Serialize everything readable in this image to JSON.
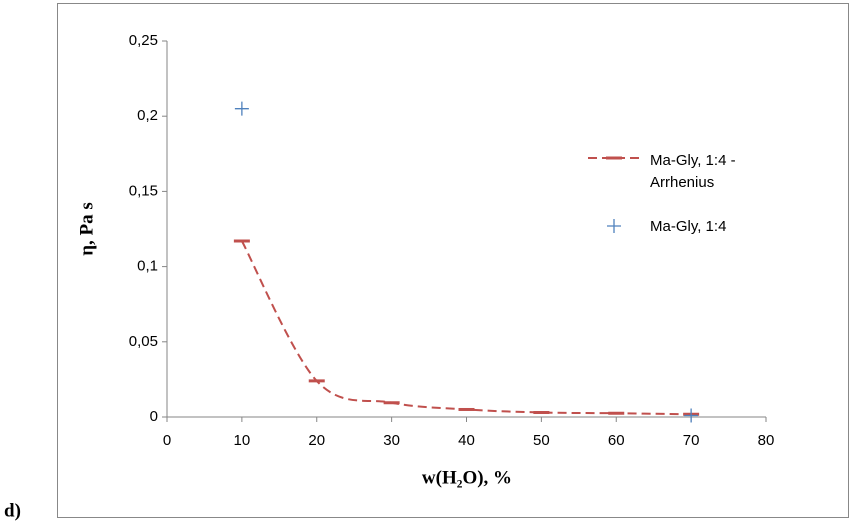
{
  "chart_data": {
    "type": "scatter",
    "panel_label": "d)",
    "xlabel": "w(H₂O), %",
    "ylabel": "η, Pa s",
    "xlim": [
      0,
      80
    ],
    "xticks": [
      0,
      10,
      20,
      30,
      40,
      50,
      60,
      70,
      80
    ],
    "ylim": [
      0,
      0.25
    ],
    "yticks": [
      0,
      {
        "value": 0.05,
        "label": "0,05"
      },
      {
        "value": 0.1,
        "label": "0,1"
      },
      {
        "value": 0.15,
        "label": "0,15"
      },
      {
        "value": 0.2,
        "label": "0,2"
      },
      {
        "value": 0.25,
        "label": "0,25"
      }
    ],
    "grid": false,
    "legend": "right",
    "series": [
      {
        "name": "Ma-Gly, 1:4 - Arrhenius",
        "color": "#c0504d",
        "style": "dashed-smooth",
        "x": [
          10,
          20,
          30,
          40,
          50,
          60,
          70
        ],
        "values": [
          0.117,
          0.024,
          0.0095,
          0.005,
          0.003,
          0.0025,
          0.0018
        ]
      },
      {
        "name": "Ma-Gly, 1:4",
        "color": "#4f81bd",
        "style": "plus",
        "x": [
          10,
          70
        ],
        "values": [
          0.205,
          0.001
        ]
      }
    ]
  }
}
